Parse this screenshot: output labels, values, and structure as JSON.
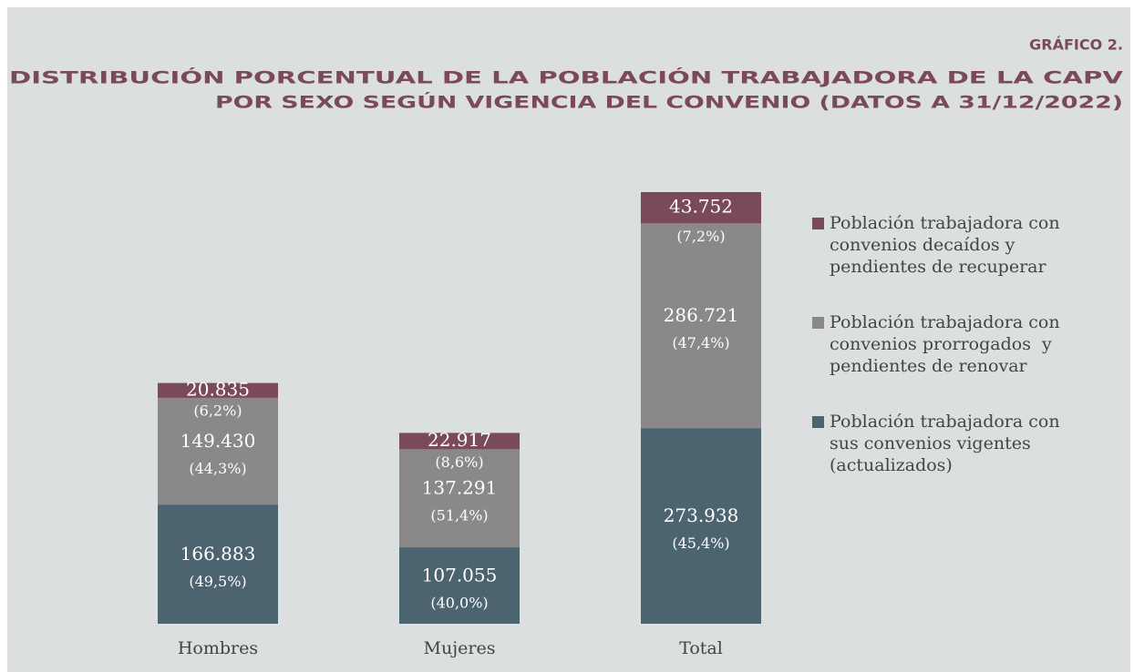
{
  "chart_data": {
    "type": "stacked_bar",
    "title": "GRÁFICO 2.",
    "subtitle": [
      "DISTRIBUCIÓN PORCENTUAL DE LA POBLACIÓN TRABAJADORA DE LA CAPV",
      "POR SEXO SEGÚN VIGENCIA DEL CONVENIO (DATOS A 31/12/2022)"
    ],
    "categories": [
      "Hombres",
      "Mujeres",
      "Total"
    ],
    "series": [
      {
        "name": "Población trabajadora con sus convenios vigentes (actualizados)",
        "color": "#4c6470",
        "values": [
          166883,
          107055,
          273938
        ],
        "value_labels": [
          "166.883",
          "107.055",
          "273.938"
        ],
        "percent_labels": [
          "(49,5%)",
          "(40,0%)",
          "(45,4%)"
        ]
      },
      {
        "name": "Población trabajadora con convenios prorrogados  y pendientes de renovar",
        "color": "#8a8889",
        "values": [
          149430,
          137291,
          286721
        ],
        "value_labels": [
          "149.430",
          "137.291",
          "286.721"
        ],
        "percent_labels": [
          "(44,3%)",
          "(51,4%)",
          "(47,4%)"
        ]
      },
      {
        "name": "Población trabajadora con convenios decaídos y pendientes de recuperar",
        "color": "#7b4a5a",
        "values": [
          20835,
          22917,
          43752
        ],
        "value_labels": [
          "20.835",
          "22.917",
          "43.752"
        ],
        "percent_labels": [
          "(6,2%)",
          "(8,6%)",
          "(7,2%)"
        ]
      }
    ]
  }
}
